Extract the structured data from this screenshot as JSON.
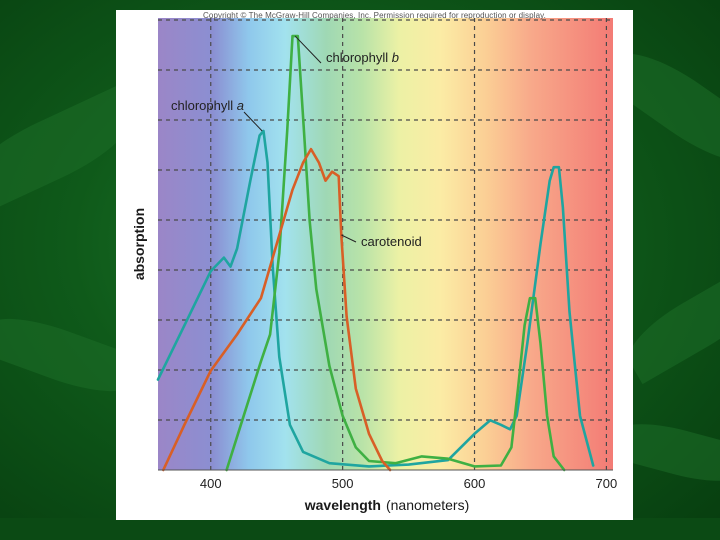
{
  "figure": {
    "copyright": "Copyright © The McGraw-Hill Companies, Inc. Permission required for reproduction or display."
  },
  "chart_data": {
    "type": "line",
    "xlabel": "wavelength",
    "xlabel_units": "(nanometers)",
    "ylabel": "absorption",
    "xlim": [
      360,
      705
    ],
    "ylim": [
      0,
      100
    ],
    "x_ticks": [
      400,
      500,
      600,
      700
    ],
    "grid": true,
    "background": "visible light spectrum (violet → blue → green → yellow → orange → red)",
    "series": [
      {
        "name": "chlorophyll a",
        "label_prefix": "chlorophyll ",
        "label_italic": "a",
        "color": "#1fa5a0",
        "points": [
          [
            360,
            20
          ],
          [
            380,
            32
          ],
          [
            400,
            44
          ],
          [
            410,
            47
          ],
          [
            415,
            45
          ],
          [
            420,
            49
          ],
          [
            430,
            64
          ],
          [
            437,
            74
          ],
          [
            440,
            75
          ],
          [
            443,
            68
          ],
          [
            447,
            45
          ],
          [
            452,
            25
          ],
          [
            460,
            10
          ],
          [
            470,
            4
          ],
          [
            490,
            1.5
          ],
          [
            520,
            0.8
          ],
          [
            550,
            1.2
          ],
          [
            580,
            2.2
          ],
          [
            600,
            8
          ],
          [
            612,
            11
          ],
          [
            620,
            10
          ],
          [
            627,
            9
          ],
          [
            632,
            12
          ],
          [
            640,
            28
          ],
          [
            650,
            50
          ],
          [
            657,
            64
          ],
          [
            660,
            67
          ],
          [
            664,
            67
          ],
          [
            667,
            58
          ],
          [
            672,
            35
          ],
          [
            680,
            12
          ],
          [
            690,
            1
          ]
        ]
      },
      {
        "name": "chlorophyll b",
        "label_prefix": "chlorophyll ",
        "label_italic": "b",
        "color": "#3fb043",
        "points": [
          [
            412,
            0
          ],
          [
            425,
            12
          ],
          [
            438,
            24
          ],
          [
            445,
            30
          ],
          [
            452,
            48
          ],
          [
            458,
            75
          ],
          [
            462,
            96
          ],
          [
            466,
            96
          ],
          [
            470,
            78
          ],
          [
            475,
            55
          ],
          [
            480,
            40
          ],
          [
            490,
            23
          ],
          [
            500,
            12
          ],
          [
            510,
            5
          ],
          [
            520,
            2
          ],
          [
            540,
            1.5
          ],
          [
            560,
            3
          ],
          [
            580,
            2.5
          ],
          [
            600,
            0.8
          ],
          [
            620,
            1
          ],
          [
            628,
            5
          ],
          [
            633,
            18
          ],
          [
            638,
            32
          ],
          [
            642,
            38
          ],
          [
            646,
            38
          ],
          [
            650,
            28
          ],
          [
            655,
            12
          ],
          [
            660,
            3
          ],
          [
            668,
            0
          ]
        ]
      },
      {
        "name": "carotenoid",
        "label_prefix": "carotenoid",
        "label_italic": "",
        "color": "#d85f26",
        "points": [
          [
            364,
            0
          ],
          [
            380,
            10
          ],
          [
            400,
            22
          ],
          [
            420,
            30
          ],
          [
            438,
            38
          ],
          [
            450,
            50
          ],
          [
            462,
            62
          ],
          [
            470,
            68
          ],
          [
            476,
            71
          ],
          [
            482,
            68
          ],
          [
            487,
            64
          ],
          [
            492,
            66
          ],
          [
            497,
            65
          ],
          [
            499,
            52
          ],
          [
            503,
            34
          ],
          [
            510,
            18
          ],
          [
            520,
            8
          ],
          [
            530,
            2
          ],
          [
            536,
            0
          ]
        ]
      }
    ]
  }
}
